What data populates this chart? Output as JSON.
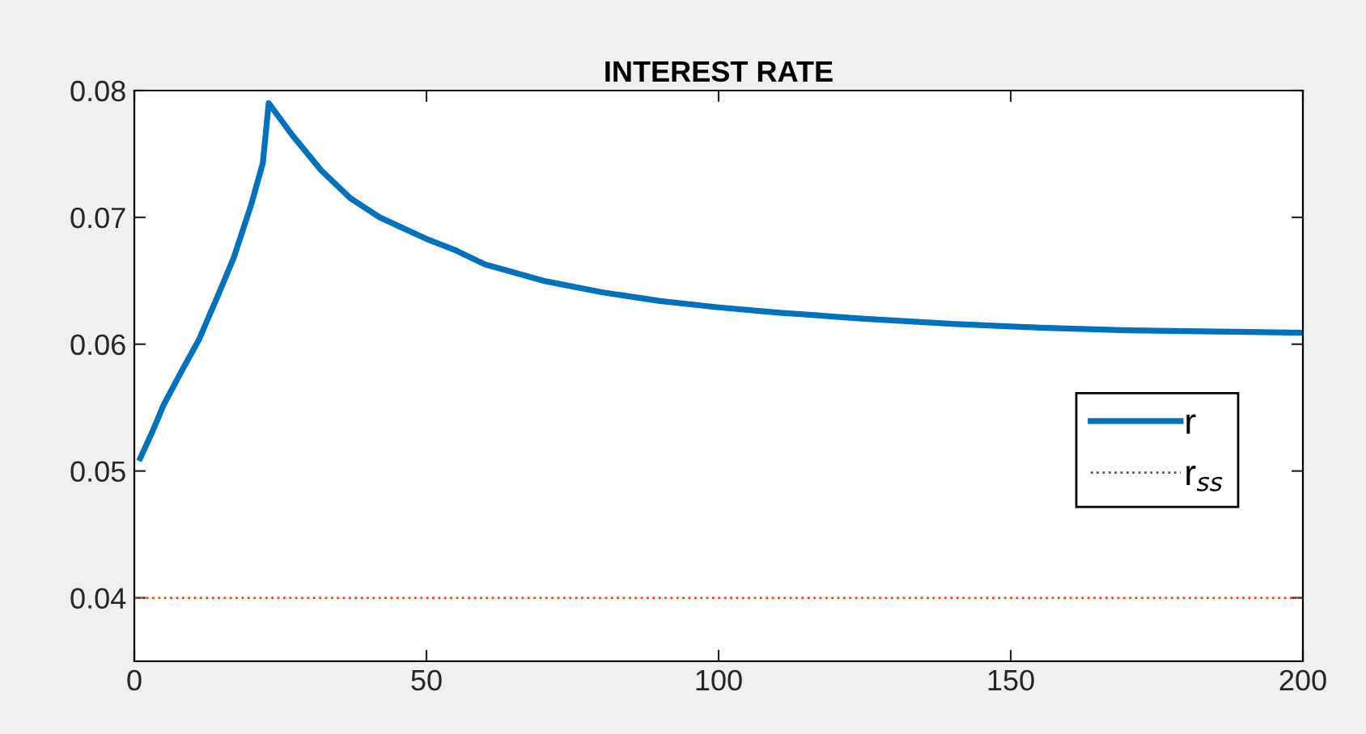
{
  "chart_data": {
    "type": "line",
    "title": "INTEREST RATE",
    "x": [
      1,
      3,
      5,
      8,
      11,
      14,
      17,
      20,
      22,
      23,
      27,
      32,
      37,
      42,
      50,
      55,
      60,
      70,
      80,
      90,
      100,
      110,
      125,
      140,
      155,
      170,
      185,
      200
    ],
    "series": [
      {
        "name": "r",
        "color": "#0072bd",
        "values": [
          0.051,
          0.053,
          0.0552,
          0.0578,
          0.0603,
          0.0635,
          0.0668,
          0.071,
          0.0743,
          0.079,
          0.0765,
          0.0737,
          0.0715,
          0.07,
          0.0683,
          0.0674,
          0.0663,
          0.065,
          0.0641,
          0.0634,
          0.0629,
          0.0625,
          0.062,
          0.0616,
          0.0613,
          0.0611,
          0.061,
          0.0609
        ]
      }
    ],
    "ref_lines": [
      {
        "axis": "y",
        "value": 0.04,
        "label": "r$_{ss}$",
        "color": "#d95319",
        "line_style": "dotted"
      }
    ],
    "xlim": [
      0,
      200
    ],
    "xticks": [
      0,
      50,
      100,
      150,
      200
    ],
    "ylim": [
      0.035,
      0.08
    ],
    "yticks": [
      0.04,
      0.05,
      0.06,
      0.07,
      0.08
    ],
    "grid": false,
    "legend": "right",
    "line_style": "solid",
    "marker": "none"
  }
}
